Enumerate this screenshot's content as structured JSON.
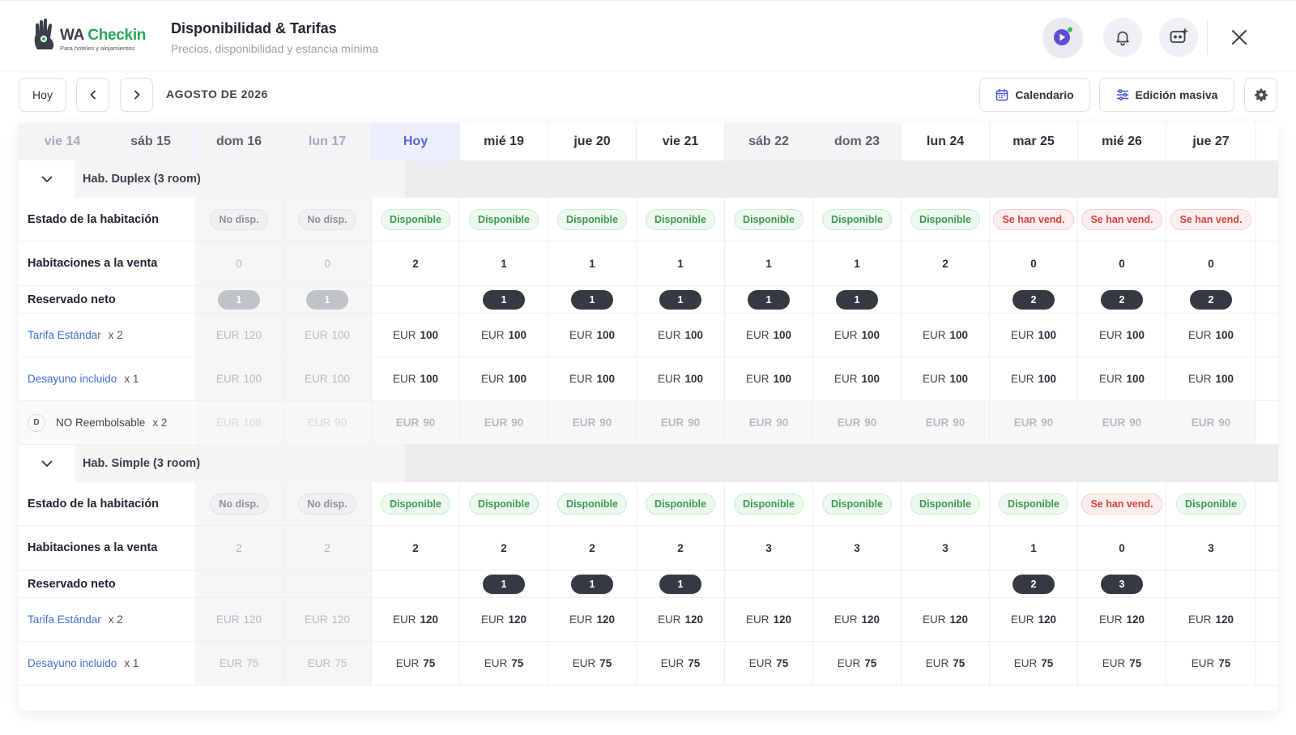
{
  "header": {
    "logo_text_1": "WA",
    "logo_text_2": "Checkin",
    "logo_tagline": "Para hoteles y alojamientos",
    "title": "Disponibilidad & Tarifas",
    "subtitle": "Precios, disponibilidad y estancia mínima"
  },
  "toolbar": {
    "today_label": "Hoy",
    "month_label": "AGOSTO DE 2026",
    "calendar_label": "Calendario",
    "bulk_edit_label": "Edición masiva"
  },
  "colors": {
    "accent": "#5a63d8",
    "available": "#3c9a52",
    "sold_out": "#d2453e",
    "link": "#3f6fd0"
  },
  "days": [
    {
      "label": "vie 14",
      "kind": "past"
    },
    {
      "label": "sáb 15",
      "kind": "weekend"
    },
    {
      "label": "dom 16",
      "kind": "weekend"
    },
    {
      "label": "lun 17",
      "kind": "past"
    },
    {
      "label": "Hoy",
      "kind": "today"
    },
    {
      "label": "mié 19",
      "kind": "normal"
    },
    {
      "label": "jue 20",
      "kind": "normal"
    },
    {
      "label": "vie 21",
      "kind": "normal"
    },
    {
      "label": "sáb 22",
      "kind": "weekend"
    },
    {
      "label": "dom 23",
      "kind": "weekend"
    },
    {
      "label": "lun 24",
      "kind": "normal"
    },
    {
      "label": "mar 25",
      "kind": "normal"
    },
    {
      "label": "mié 26",
      "kind": "normal"
    },
    {
      "label": "jue 27",
      "kind": "normal"
    }
  ],
  "rooms": [
    {
      "name": "Hab. Duplex (3 room)",
      "status_label": "Estado de la habitación",
      "status": [
        "",
        "",
        "No disp.",
        "No disp.",
        "Disponible",
        "Disponible",
        "Disponible",
        "Disponible",
        "Disponible",
        "Disponible",
        "Disponible",
        "Se han vend.",
        "Se han vend.",
        "Se han vend."
      ],
      "for_sale_label": "Habitaciones a la venta",
      "for_sale": [
        "",
        "",
        "0",
        "0",
        "2",
        "1",
        "1",
        "1",
        "1",
        "1",
        "2",
        "0",
        "0",
        "0"
      ],
      "booked_label": "Reservado neto",
      "booked": [
        "",
        "",
        "1",
        "1",
        "",
        "1",
        "1",
        "1",
        "1",
        "1",
        "",
        "2",
        "2",
        "2"
      ],
      "rates": [
        {
          "name": "Tarifa Estándar",
          "mult": "x 2",
          "currency": "EUR",
          "style": "link",
          "prices": [
            "",
            "",
            "120",
            "100",
            "100",
            "100",
            "100",
            "100",
            "100",
            "100",
            "100",
            "100",
            "100",
            "100"
          ]
        },
        {
          "name": "Desayuno incluido",
          "mult": "x 1",
          "currency": "EUR",
          "style": "link",
          "prices": [
            "",
            "",
            "100",
            "100",
            "100",
            "100",
            "100",
            "100",
            "100",
            "100",
            "100",
            "100",
            "100",
            "100"
          ]
        },
        {
          "name": "NO Reembolsable",
          "mult": "x 2",
          "currency": "EUR",
          "style": "derived",
          "badge": "D",
          "prices": [
            "",
            "",
            "108",
            "90",
            "90",
            "90",
            "90",
            "90",
            "90",
            "90",
            "90",
            "90",
            "90",
            "90"
          ]
        }
      ]
    },
    {
      "name": "Hab. Simple (3 room)",
      "status_label": "Estado de la habitación",
      "status": [
        "",
        "",
        "No disp.",
        "No disp.",
        "Disponible",
        "Disponible",
        "Disponible",
        "Disponible",
        "Disponible",
        "Disponible",
        "Disponible",
        "Disponible",
        "Se han vend.",
        "Disponible"
      ],
      "for_sale_label": "Habitaciones a la venta",
      "for_sale": [
        "",
        "",
        "2",
        "2",
        "2",
        "2",
        "2",
        "2",
        "3",
        "3",
        "3",
        "1",
        "0",
        "3"
      ],
      "booked_label": "Reservado neto",
      "booked": [
        "",
        "",
        "",
        "",
        "",
        "1",
        "1",
        "1",
        "",
        "",
        "",
        "2",
        "3",
        ""
      ],
      "rates": [
        {
          "name": "Tarifa Estándar",
          "mult": "x 2",
          "currency": "EUR",
          "style": "link",
          "prices": [
            "",
            "",
            "120",
            "120",
            "120",
            "120",
            "120",
            "120",
            "120",
            "120",
            "120",
            "120",
            "120",
            "120"
          ]
        },
        {
          "name": "Desayuno incluido",
          "mult": "x 1",
          "currency": "EUR",
          "style": "link",
          "prices": [
            "",
            "",
            "75",
            "75",
            "75",
            "75",
            "75",
            "75",
            "75",
            "75",
            "75",
            "75",
            "75",
            "75"
          ]
        }
      ]
    }
  ]
}
